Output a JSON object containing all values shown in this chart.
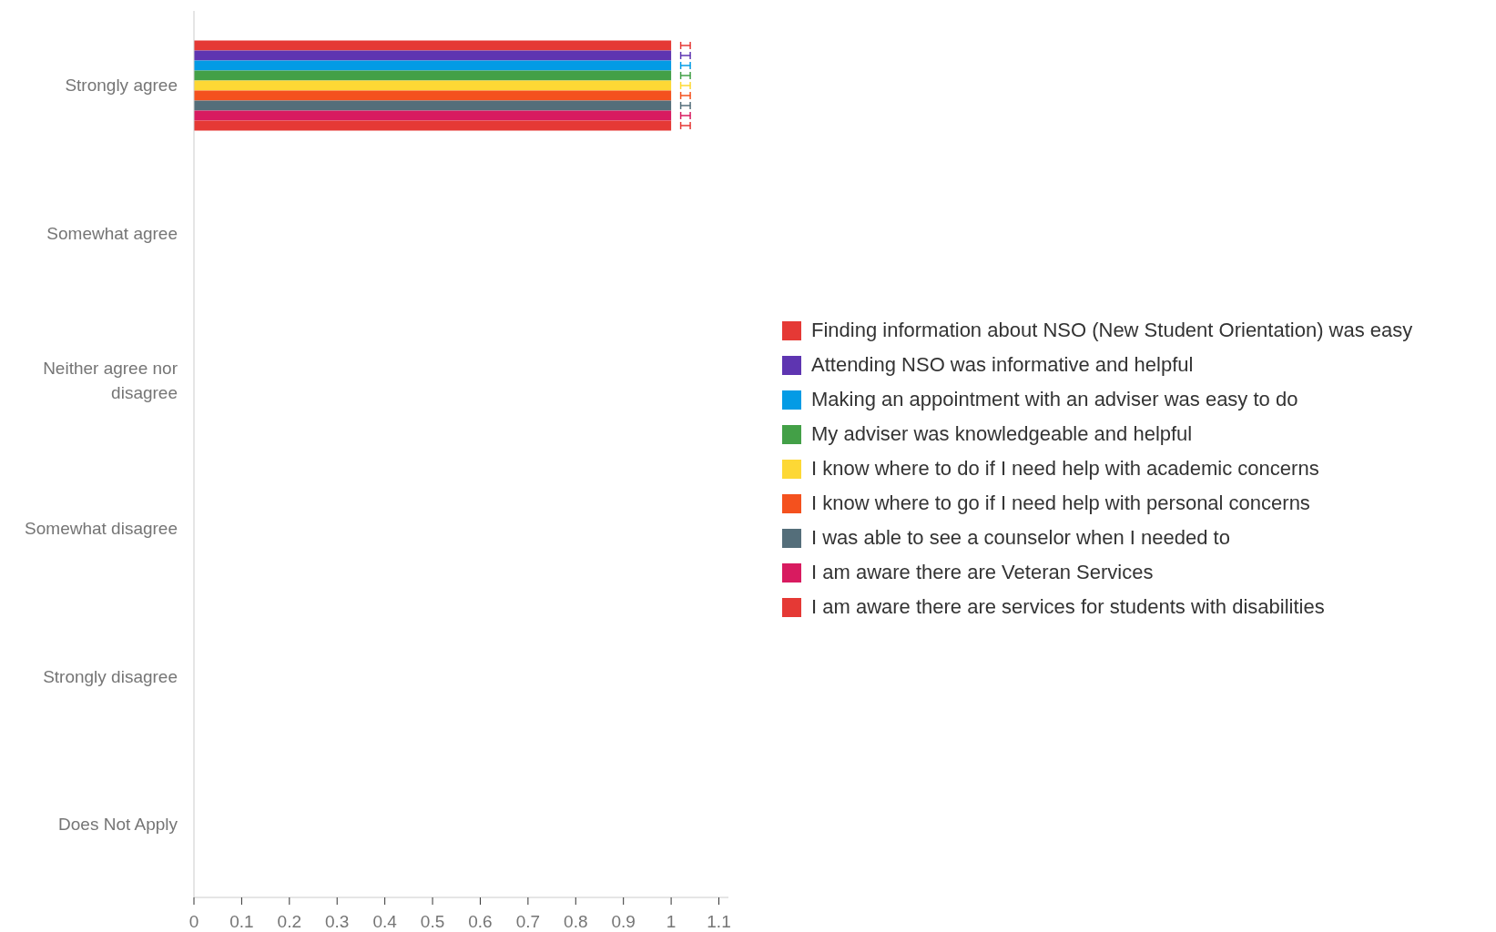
{
  "chart_data": {
    "type": "bar",
    "orientation": "horizontal",
    "categories": [
      "Strongly agree",
      "Somewhat agree",
      "Neither agree nor disagree",
      "Somewhat disagree",
      "Strongly disagree",
      "Does Not Apply"
    ],
    "series": [
      {
        "name": "Finding information about NSO (New Student Orientation) was easy",
        "color": "#e53935",
        "values": [
          1,
          0,
          0,
          0,
          0,
          0
        ],
        "errors": [
          [
            1.02,
            1.04
          ],
          null,
          null,
          null,
          null,
          null
        ]
      },
      {
        "name": "Attending NSO was informative and helpful",
        "color": "#5e35b1",
        "values": [
          1,
          0,
          0,
          0,
          0,
          0
        ],
        "errors": [
          [
            1.02,
            1.04
          ],
          null,
          null,
          null,
          null,
          null
        ]
      },
      {
        "name": "Making an appointment with an adviser was easy to do",
        "color": "#039be5",
        "values": [
          1,
          0,
          0,
          0,
          0,
          0
        ],
        "errors": [
          [
            1.02,
            1.04
          ],
          null,
          null,
          null,
          null,
          null
        ]
      },
      {
        "name": "My adviser was knowledgeable and helpful",
        "color": "#43a047",
        "values": [
          1,
          0,
          0,
          0,
          0,
          0
        ],
        "errors": [
          [
            1.02,
            1.04
          ],
          null,
          null,
          null,
          null,
          null
        ]
      },
      {
        "name": "I know where to do if I need help with academic concerns",
        "color": "#fdd835",
        "values": [
          1,
          0,
          0,
          0,
          0,
          0
        ],
        "errors": [
          [
            1.02,
            1.04
          ],
          null,
          null,
          null,
          null,
          null
        ]
      },
      {
        "name": "I know where to go if I need help with personal concerns",
        "color": "#f4511e",
        "values": [
          1,
          0,
          0,
          0,
          0,
          0
        ],
        "errors": [
          [
            1.02,
            1.04
          ],
          null,
          null,
          null,
          null,
          null
        ]
      },
      {
        "name": "I was able to see a counselor when I needed to",
        "color": "#546e7a",
        "values": [
          1,
          0,
          0,
          0,
          0,
          0
        ],
        "errors": [
          [
            1.02,
            1.04
          ],
          null,
          null,
          null,
          null,
          null
        ]
      },
      {
        "name": "I am aware there are Veteran Services",
        "color": "#d81b60",
        "values": [
          1,
          0,
          0,
          0,
          0,
          0
        ],
        "errors": [
          [
            1.02,
            1.04
          ],
          null,
          null,
          null,
          null,
          null
        ]
      },
      {
        "name": "I am aware there are services for students with disabilities",
        "color": "#e53935",
        "values": [
          1,
          0,
          0,
          0,
          0,
          0
        ],
        "errors": [
          [
            1.02,
            1.04
          ],
          null,
          null,
          null,
          null,
          null
        ]
      }
    ],
    "xlim": [
      0,
      1.12
    ],
    "xticks": [
      0,
      0.1,
      0.2,
      0.3,
      0.4,
      0.5,
      0.6,
      0.7,
      0.8,
      0.9,
      1,
      1.1
    ],
    "legend": "right"
  }
}
